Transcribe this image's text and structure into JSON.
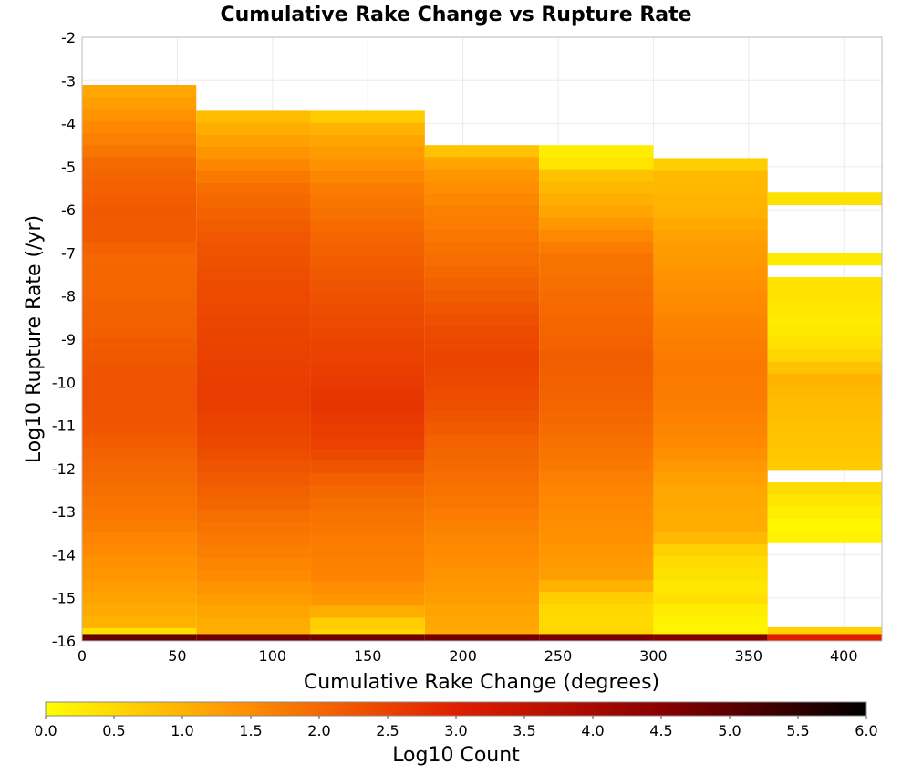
{
  "chart_data": {
    "type": "heatmap",
    "title": "Cumulative Rake Change vs Rupture Rate",
    "xlabel": "Cumulative Rake Change (degrees)",
    "ylabel": "Log10 Rupture Rate (/yr)",
    "xlim": [
      0,
      420
    ],
    "ylim": [
      -16,
      -2
    ],
    "x_ticks": [
      0,
      50,
      100,
      150,
      200,
      250,
      300,
      350,
      400
    ],
    "y_ticks": [
      -2,
      -3,
      -4,
      -5,
      -6,
      -7,
      -8,
      -9,
      -10,
      -11,
      -12,
      -13,
      -14,
      -15,
      -16
    ],
    "x_bin_width": 60,
    "y_bin_height": 0.28,
    "grid": true,
    "colorbar": {
      "label": "Log10 Count",
      "range": [
        0,
        6
      ],
      "ticks": [
        "0.0",
        "0.5",
        "1.0",
        "1.5",
        "2.0",
        "2.5",
        "3.0",
        "3.5",
        "4.0",
        "4.5",
        "5.0",
        "5.5",
        "6.0"
      ],
      "colors": [
        "#ffff00",
        "#ff8c00",
        "#e01e00",
        "#8a0000",
        "#000000"
      ]
    },
    "columns": [
      {
        "x_start": 0,
        "anchors": [
          [
            -3.1,
            1.1
          ],
          [
            -3.6,
            1.3
          ],
          [
            -4.2,
            1.6
          ],
          [
            -5.0,
            2.0
          ],
          [
            -6.1,
            2.2
          ],
          [
            -6.8,
            2.15
          ],
          [
            -7.0,
            2.0
          ],
          [
            -8.0,
            2.05
          ],
          [
            -9.0,
            2.15
          ],
          [
            -10.0,
            2.3
          ],
          [
            -11.0,
            2.25
          ],
          [
            -12.0,
            2.0
          ],
          [
            -13.0,
            1.8
          ],
          [
            -14.0,
            1.5
          ],
          [
            -15.0,
            1.2
          ],
          [
            -15.6,
            1.0
          ],
          [
            -15.8,
            0.3
          ]
        ],
        "bottom_row": 4.9
      },
      {
        "x_start": 60,
        "anchors": [
          [
            -3.7,
            0.8
          ],
          [
            -4.5,
            1.3
          ],
          [
            -5.5,
            1.9
          ],
          [
            -6.5,
            2.2
          ],
          [
            -7.5,
            2.35
          ],
          [
            -9.0,
            2.5
          ],
          [
            -10.5,
            2.6
          ],
          [
            -11.5,
            2.4
          ],
          [
            -12.5,
            2.1
          ],
          [
            -13.5,
            1.8
          ],
          [
            -14.5,
            1.5
          ],
          [
            -15.5,
            1.1
          ],
          [
            -15.8,
            1.05
          ]
        ],
        "bottom_row": 4.85
      },
      {
        "x_start": 120,
        "anchors": [
          [
            -3.7,
            0.5
          ],
          [
            -4.2,
            1.1
          ],
          [
            -5.5,
            1.7
          ],
          [
            -6.5,
            2.0
          ],
          [
            -8.0,
            2.3
          ],
          [
            -9.5,
            2.55
          ],
          [
            -10.5,
            2.7
          ],
          [
            -11.5,
            2.5
          ],
          [
            -12.5,
            2.0
          ],
          [
            -13.5,
            1.75
          ],
          [
            -14.5,
            1.6
          ],
          [
            -15.2,
            1.3
          ],
          [
            -15.5,
            0.7
          ],
          [
            -15.8,
            0.5
          ]
        ],
        "bottom_row": 4.8
      },
      {
        "x_start": 180,
        "anchors": [
          [
            -4.5,
            0.6
          ],
          [
            -5.0,
            1.3
          ],
          [
            -6.0,
            1.65
          ],
          [
            -7.5,
            2.0
          ],
          [
            -8.5,
            2.3
          ],
          [
            -9.5,
            2.5
          ],
          [
            -10.5,
            2.35
          ],
          [
            -11.5,
            2.05
          ],
          [
            -12.5,
            1.85
          ],
          [
            -13.5,
            1.6
          ],
          [
            -14.5,
            1.4
          ],
          [
            -15.3,
            1.2
          ],
          [
            -15.8,
            1.1
          ]
        ],
        "bottom_row": 4.75
      },
      {
        "x_start": 240,
        "anchors": [
          [
            -4.5,
            0.3
          ],
          [
            -4.8,
            0.15
          ],
          [
            -5.2,
            0.8
          ],
          [
            -6.0,
            1.15
          ],
          [
            -7.0,
            1.8
          ],
          [
            -8.5,
            2.0
          ],
          [
            -9.5,
            2.15
          ],
          [
            -10.5,
            2.05
          ],
          [
            -11.5,
            1.85
          ],
          [
            -12.5,
            1.6
          ],
          [
            -13.5,
            1.45
          ],
          [
            -14.5,
            1.25
          ],
          [
            -15.0,
            0.65
          ],
          [
            -15.4,
            0.45
          ],
          [
            -15.8,
            0.55
          ]
        ],
        "bottom_row": 4.7
      },
      {
        "x_start": 300,
        "anchors": [
          [
            -4.8,
            0.5
          ],
          [
            -5.2,
            0.9
          ],
          [
            -6.0,
            1.0
          ],
          [
            -6.5,
            1.2
          ],
          [
            -7.5,
            1.4
          ],
          [
            -8.5,
            1.6
          ],
          [
            -9.5,
            1.75
          ],
          [
            -10.5,
            1.7
          ],
          [
            -11.5,
            1.5
          ],
          [
            -12.5,
            1.15
          ],
          [
            -13.5,
            1.05
          ],
          [
            -14.0,
            0.5
          ],
          [
            -14.8,
            0.3
          ],
          [
            -15.1,
            0.45
          ],
          [
            -15.4,
            0.15
          ],
          [
            -15.8,
            0.15
          ]
        ],
        "bottom_row": 4.6
      },
      {
        "x_start": 360,
        "anchors": [
          [
            -5.6,
            0.4
          ],
          [
            -7.1,
            0.25
          ],
          [
            -7.8,
            0.4
          ],
          [
            -8.6,
            0.25
          ],
          [
            -9.2,
            0.4
          ],
          [
            -9.9,
            1.0
          ],
          [
            -10.7,
            0.85
          ],
          [
            -11.7,
            0.75
          ],
          [
            -12.6,
            0.4
          ],
          [
            -13.3,
            0.1
          ],
          [
            -15.7,
            0.6
          ]
        ],
        "rows_present": [
          [
            -5.75,
            -5.45
          ],
          [
            -7.25,
            -6.97
          ],
          [
            -12.15,
            -9.6
          ],
          [
            -9.45,
            -7.6
          ],
          [
            -13.85,
            -12.4
          ],
          [
            -15.86,
            -15.58
          ]
        ],
        "bottom_row": 3.0
      }
    ]
  }
}
